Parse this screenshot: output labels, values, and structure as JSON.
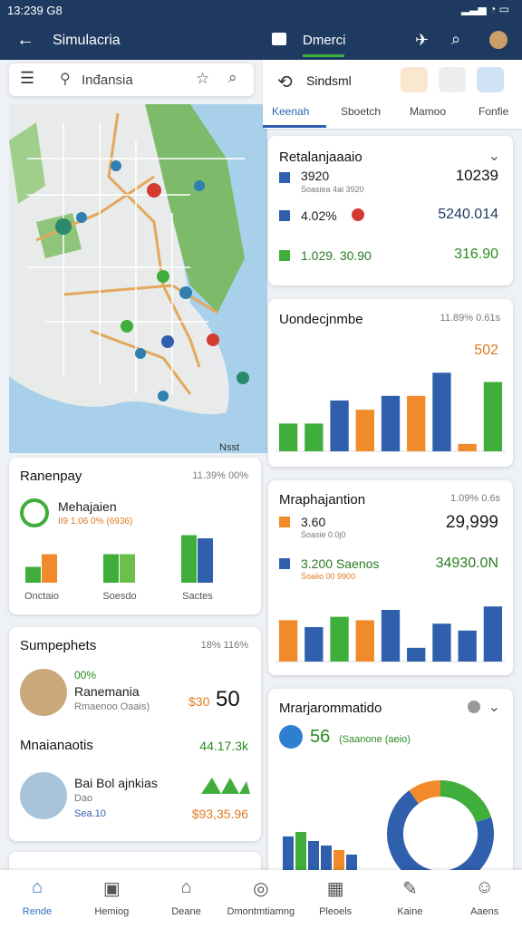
{
  "status": {
    "time": "13:239 G8"
  },
  "appbar": {
    "title": "Simulacria",
    "tab": "Dmerci"
  },
  "search": {
    "placeholder": "Inđansia"
  },
  "map": {
    "label": "Nsst"
  },
  "panel": {
    "title": "Sindsml",
    "tabs": [
      "Keenah",
      "Sboetch",
      "Mamoo",
      "Fonfie"
    ]
  },
  "summary": {
    "title": "Retalanjaaaio",
    "rows": [
      {
        "label": "3920",
        "sub": "Ṡoasiea 4ai 3920",
        "value": "10239"
      },
      {
        "label": "4.02%",
        "value": "5240.014"
      },
      {
        "label": "1.029. 30.90",
        "value": "316.90"
      }
    ]
  },
  "trend": {
    "title": "Uondecjnmbe",
    "stat": "11.89% 0.61s",
    "highlight": "502",
    "bars": [
      30,
      30,
      55,
      45,
      60,
      60,
      85,
      8,
      75
    ],
    "colors": [
      "#3fae3a",
      "#3fae3a",
      "#2f5fad",
      "#f08a2a",
      "#2f5fad",
      "#f08a2a",
      "#2f5fad",
      "#f08a2a",
      "#3fae3a"
    ]
  },
  "ranking": {
    "title": "Ranenpay",
    "stat": "11.39% 00%",
    "name": "Mehajaien",
    "sub": "II9 1.06 0% (6936)",
    "groups": [
      {
        "label": "Onctaio",
        "values": [
          25,
          45
        ],
        "colors": [
          "#3fae3a",
          "#f08a2a"
        ]
      },
      {
        "label": "Soesdo",
        "values": [
          45,
          45
        ],
        "colors": [
          "#3fae3a",
          "#6cc04a"
        ]
      },
      {
        "label": "Sactes",
        "values": [
          75,
          70
        ],
        "colors": [
          "#3fae3a",
          "#2f5fad"
        ]
      }
    ]
  },
  "products": {
    "title": "Sumpephets",
    "stat": "18% 116%",
    "item1": {
      "badge": "00%",
      "name": "Ranemania",
      "sub": "Rmaenoo Oaais)",
      "price_small": "$30",
      "price": "50"
    },
    "section": "Mnaianaotis",
    "section_value": "44.17.3k",
    "item2": {
      "name": "Bai Bol ajnkias",
      "sub": "Dao",
      "detail": "Sea.10",
      "price": "$93,35.96"
    }
  },
  "migration": {
    "title": "Mraphajantion",
    "stat": "1.09% 0.6s",
    "rows": [
      {
        "label": "3.60",
        "sub": "Ṡoasie 0.0j0",
        "value": "29,999"
      },
      {
        "label": "3.200 Saenos",
        "sub": "Ṡoaiio 00 9900",
        "value": "34930.0N"
      }
    ],
    "bars": [
      60,
      50,
      65,
      60,
      75,
      20,
      55,
      45,
      80
    ],
    "colors": [
      "#f08a2a",
      "#2f5fad",
      "#3fae3a",
      "#f08a2a",
      "#2f5fad",
      "#2f5fad",
      "#2f5fad",
      "#2f5fad",
      "#2f5fad"
    ]
  },
  "market": {
    "title": "Mrarjarommatido",
    "value": "56",
    "sub": "(Saanone (aeio)",
    "donut": {
      "values": [
        20,
        70,
        10
      ],
      "colors": [
        "#3fae3a",
        "#2f5fad",
        "#f08a2a"
      ]
    },
    "bars": [
      45,
      50,
      40,
      35,
      30,
      25
    ],
    "colors": [
      "#2f5fad",
      "#3fae3a",
      "#2f5fad",
      "#2f5fad",
      "#f08a2a",
      "#2f5fad"
    ]
  },
  "nav": [
    "Rende",
    "Hemiog",
    "Deane",
    "Dmontmtiamng",
    "Pleoels",
    "Kaine",
    "Aaens"
  ]
}
